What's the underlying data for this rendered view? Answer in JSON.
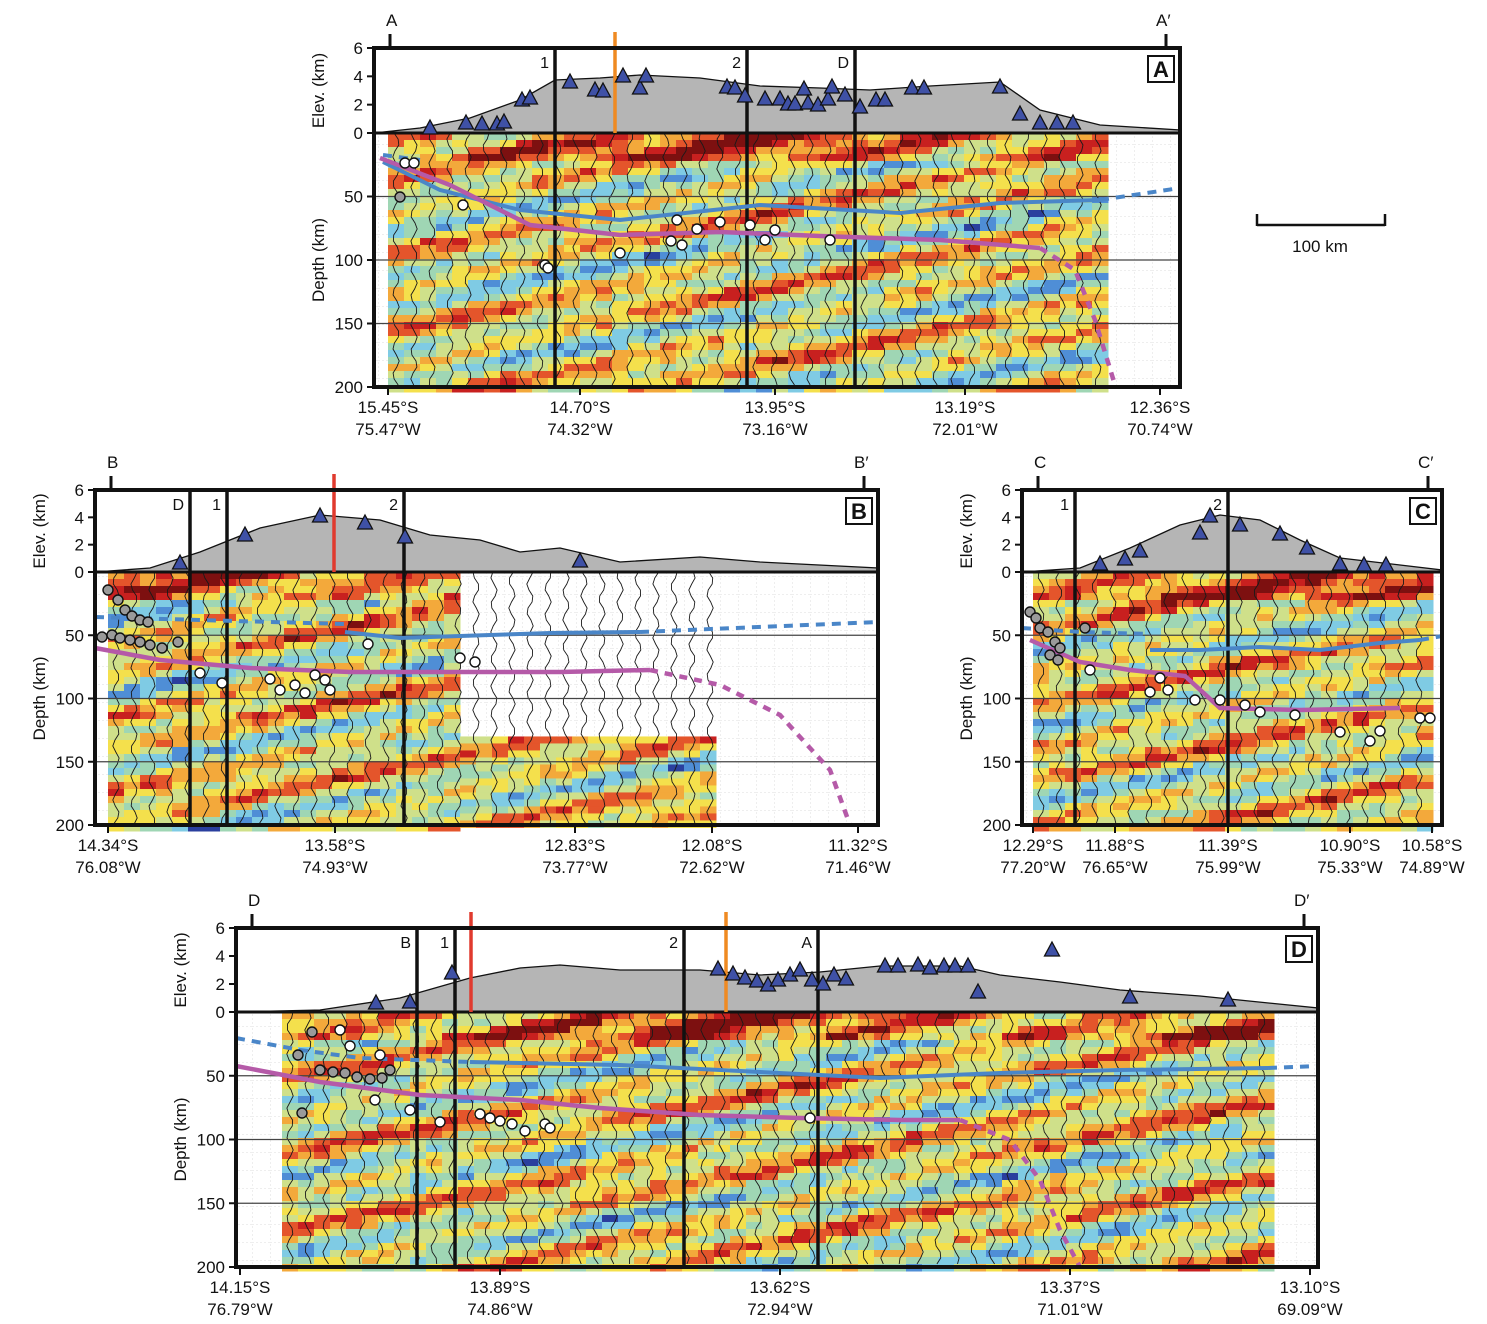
{
  "scale_bar": {
    "label": "100 km"
  },
  "colors": {
    "topography": "#b5b5b5",
    "station_triangle": "#3f51a6",
    "moho_dashed": "#4a86c8",
    "slab_magenta": "#b55aa8",
    "marker_orange": "#ef8a22",
    "marker_red": "#e03a2e",
    "positive_arrival": "#c81e1e",
    "negative_arrival": "#23409a"
  },
  "axes": {
    "elev_label": "Elev. (km)",
    "elev_ticks": [
      "6",
      "4",
      "2",
      "0"
    ],
    "depth_label": "Depth (km)",
    "depth_ticks": [
      "50",
      "100",
      "150",
      "200"
    ]
  },
  "panels": [
    {
      "id": "A",
      "letter": "A",
      "start_label": "A",
      "end_label": "A′",
      "crossing_lines": [
        "1",
        "2",
        "D"
      ],
      "marker": "orange",
      "x_ticks": [
        {
          "lat": "15.45°S",
          "lon": "75.47°W"
        },
        {
          "lat": "14.70°S",
          "lon": "74.32°W"
        },
        {
          "lat": "13.95°S",
          "lon": "73.16°W"
        },
        {
          "lat": "13.19°S",
          "lon": "72.01°W"
        },
        {
          "lat": "12.36°S",
          "lon": "70.74°W"
        }
      ]
    },
    {
      "id": "B",
      "letter": "B",
      "start_label": "B",
      "end_label": "B′",
      "crossing_lines": [
        "D",
        "1",
        "2"
      ],
      "marker": "red",
      "x_ticks": [
        {
          "lat": "14.34°S",
          "lon": "76.08°W"
        },
        {
          "lat": "13.58°S",
          "lon": "74.93°W"
        },
        {
          "lat": "12.83°S",
          "lon": "73.77°W"
        },
        {
          "lat": "12.08°S",
          "lon": "72.62°W"
        },
        {
          "lat": "11.32°S",
          "lon": "71.46°W"
        }
      ]
    },
    {
      "id": "C",
      "letter": "C",
      "start_label": "C",
      "end_label": "C′",
      "crossing_lines": [
        "1",
        "2"
      ],
      "marker": "none",
      "x_ticks": [
        {
          "lat": "12.29°S",
          "lon": "77.20°W"
        },
        {
          "lat": "11.88°S",
          "lon": "76.65°W"
        },
        {
          "lat": "11.39°S",
          "lon": "75.99°W"
        },
        {
          "lat": "10.90°S",
          "lon": "75.33°W"
        },
        {
          "lat": "10.58°S",
          "lon": "74.89°W"
        }
      ]
    },
    {
      "id": "D",
      "letter": "D",
      "start_label": "D",
      "end_label": "D′",
      "crossing_lines": [
        "B",
        "1",
        "2",
        "A"
      ],
      "marker": "red+orange",
      "x_ticks": [
        {
          "lat": "14.15°S",
          "lon": "76.79°W"
        },
        {
          "lat": "13.89°S",
          "lon": "74.86°W"
        },
        {
          "lat": "13.62°S",
          "lon": "72.94°W"
        },
        {
          "lat": "13.37°S",
          "lon": "71.01°W"
        },
        {
          "lat": "13.10°S",
          "lon": "69.09°W"
        }
      ]
    }
  ]
}
